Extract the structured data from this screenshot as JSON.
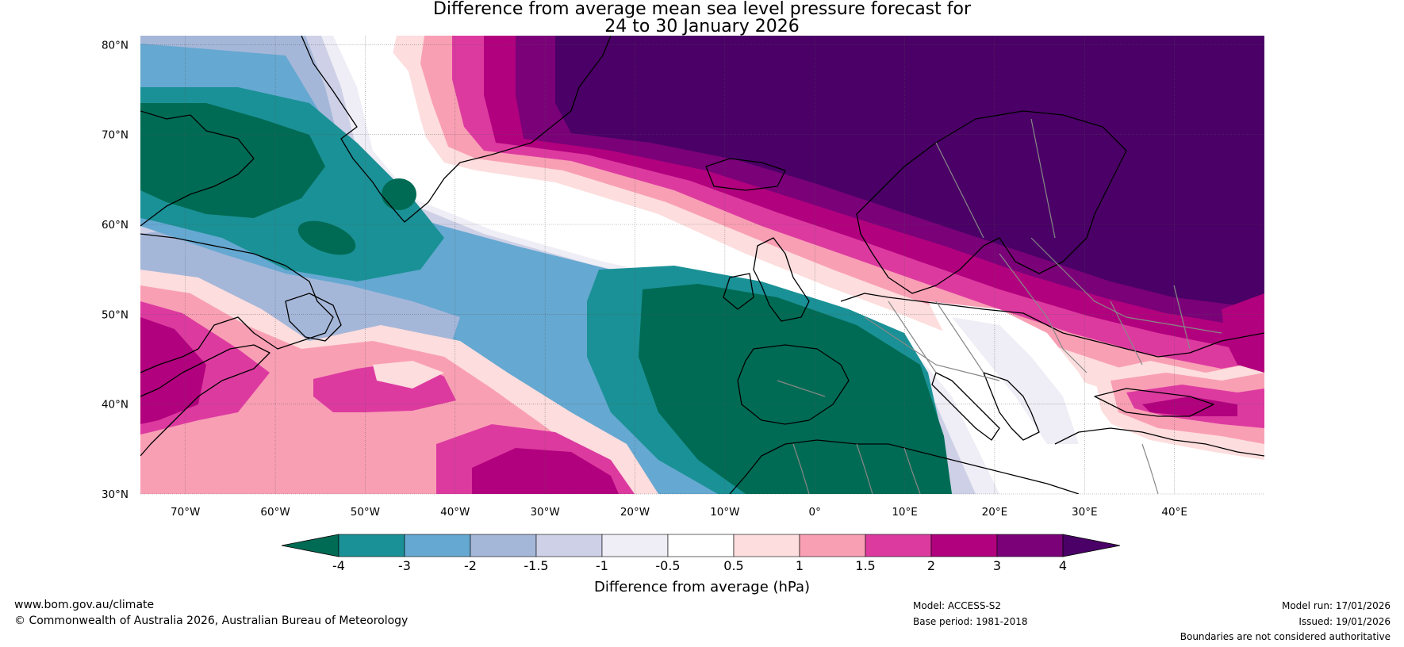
{
  "title": {
    "line1": "Difference from average mean sea level pressure forecast for",
    "line2": "24 to 30 January 2026"
  },
  "map": {
    "lon_range": [
      -75,
      50
    ],
    "lat_range": [
      30,
      81
    ],
    "lon_ticks": [
      {
        "value": -70,
        "label": "70°W"
      },
      {
        "value": -60,
        "label": "60°W"
      },
      {
        "value": -50,
        "label": "50°W"
      },
      {
        "value": -40,
        "label": "40°W"
      },
      {
        "value": -30,
        "label": "30°W"
      },
      {
        "value": -20,
        "label": "20°W"
      },
      {
        "value": -10,
        "label": "10°W"
      },
      {
        "value": 0,
        "label": "0°"
      },
      {
        "value": 10,
        "label": "10°E"
      },
      {
        "value": 20,
        "label": "20°E"
      },
      {
        "value": 30,
        "label": "30°E"
      },
      {
        "value": 40,
        "label": "40°E"
      }
    ],
    "lat_ticks": [
      {
        "value": 80,
        "label": "80°N"
      },
      {
        "value": 70,
        "label": "70°N"
      },
      {
        "value": 60,
        "label": "60°N"
      },
      {
        "value": 50,
        "label": "50°N"
      },
      {
        "value": 40,
        "label": "40°N"
      },
      {
        "value": 30,
        "label": "30°N"
      }
    ],
    "pressure_centres": [
      {
        "name": "high-scandinavia",
        "lon": 25,
        "lat": 68,
        "anomaly": 4.5
      },
      {
        "name": "high-north-atlantic",
        "lon": 5,
        "lat": 78,
        "anomaly": 4.5
      },
      {
        "name": "low-iberia-northafrica",
        "lon": 3,
        "lat": 40,
        "anomaly": -4.5
      },
      {
        "name": "low-labrador-sea",
        "lon": -62,
        "lat": 67,
        "anomaly": -4.2
      },
      {
        "name": "low-irminger",
        "lon": -47,
        "lat": 64,
        "anomaly": -3.5
      },
      {
        "name": "high-midatlantic-south",
        "lon": -30,
        "lat": 32,
        "anomaly": 2.8
      },
      {
        "name": "high-midatlantic",
        "lon": -43,
        "lat": 42,
        "anomaly": 2.0
      },
      {
        "name": "high-us-east",
        "lon": -72,
        "lat": 42,
        "anomaly": 2.5
      },
      {
        "name": "high-turkey",
        "lon": 38,
        "lat": 39,
        "anomaly": 2.6
      }
    ],
    "colors": {
      "c_lt_m4": "#006b54",
      "c_m4_m3": "#1a9196",
      "c_m3_m2": "#65a8d1",
      "c_m2_m15": "#a5b7d9",
      "c_m15_m1": "#cdd0e6",
      "c_m1_m05": "#efedf5",
      "c_m05_05": "#ffffff",
      "c_05_1": "#fddddd",
      "c_1_15": "#f99fb4",
      "c_15_2": "#dd3aa0",
      "c_2_3": "#b2017e",
      "c_3_4": "#7b0179",
      "c_gt_4": "#4a0066"
    }
  },
  "colorbar": {
    "ticks": [
      "-4",
      "-3",
      "-2",
      "-1.5",
      "-1",
      "-0.5",
      "0.5",
      "1",
      "1.5",
      "2",
      "3",
      "4"
    ],
    "label": "Difference from average (hPa)"
  },
  "footer": {
    "website": "www.bom.gov.au/climate",
    "copyright": "© Commonwealth of Australia 2026, Australian Bureau of Meteorology",
    "model": "Model: ACCESS-S2",
    "base_period": "Base period: 1981-2018",
    "model_run": "Model run: 17/01/2026",
    "issued": "Issued: 19/01/2026",
    "disclaimer": "Boundaries are not considered authoritative"
  }
}
